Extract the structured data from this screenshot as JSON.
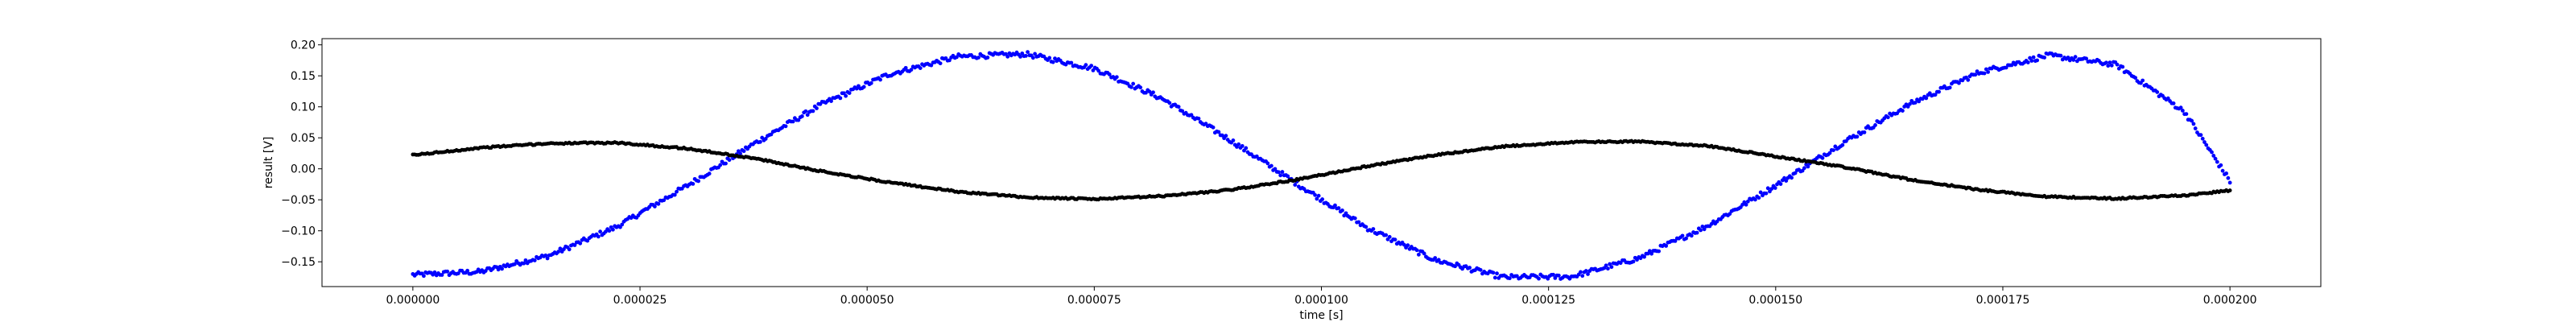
{
  "chart_data": {
    "type": "scatter",
    "title": "",
    "xlabel": "time [s]",
    "ylabel": "result [V]",
    "xlim": [
      -1e-05,
      0.00021
    ],
    "ylim": [
      -0.19,
      0.21
    ],
    "grid": false,
    "x_ticks": [
      0.0,
      2.5e-05,
      5e-05,
      7.5e-05,
      0.0001,
      0.000125,
      0.00015,
      0.000175,
      0.0002
    ],
    "x_tick_labels": [
      "0.000000",
      "0.000025",
      "0.000050",
      "0.000075",
      "0.000100",
      "0.000125",
      "0.000150",
      "0.000175",
      "0.000200"
    ],
    "y_ticks": [
      -0.15,
      -0.1,
      -0.05,
      0.0,
      0.05,
      0.1,
      0.15,
      0.2
    ],
    "y_tick_labels": [
      "−0.15",
      "−0.10",
      "−0.05",
      "0.00",
      "0.05",
      "0.10",
      "0.15",
      "0.20"
    ],
    "series": [
      {
        "color": "#0000ff",
        "marker": "dot",
        "x": [
          0.0,
          7.5e-06,
          1.5e-05,
          2.25e-05,
          3e-05,
          3.75e-05,
          4.5e-05,
          5.25e-05,
          6e-05,
          6.75e-05,
          7.5e-05,
          8.25e-05,
          9e-05,
          9.75e-05,
          0.000105,
          0.0001125,
          0.00012,
          0.0001275,
          0.000135,
          0.0001425,
          0.00015,
          0.0001575,
          0.000165,
          0.0001725,
          0.00018,
          0.0001875,
          0.000195,
          0.0002
        ],
        "y": [
          -0.171,
          -0.166,
          -0.14,
          -0.093,
          -0.029,
          0.04,
          0.104,
          0.153,
          0.181,
          0.185,
          0.162,
          0.113,
          0.046,
          -0.026,
          -0.095,
          -0.147,
          -0.175,
          -0.174,
          -0.144,
          -0.092,
          -0.027,
          0.043,
          0.106,
          0.156,
          0.183,
          0.168,
          0.092,
          -0.02
        ]
      },
      {
        "color": "#000000",
        "marker": "dot",
        "x": [
          0.0,
          7.5e-06,
          1.5e-05,
          2.25e-05,
          3e-05,
          3.75e-05,
          4.5e-05,
          5.25e-05,
          6e-05,
          6.75e-05,
          7.5e-05,
          8.25e-05,
          9e-05,
          9.75e-05,
          0.000105,
          0.0001125,
          0.00012,
          0.0001275,
          0.000135,
          0.0001425,
          0.00015,
          0.0001575,
          0.000165,
          0.0001725,
          0.00018,
          0.0001875,
          0.000195,
          0.0002
        ],
        "y": [
          0.022,
          0.034,
          0.041,
          0.042,
          0.033,
          0.017,
          -0.004,
          -0.022,
          -0.037,
          -0.046,
          -0.049,
          -0.044,
          -0.034,
          -0.017,
          0.004,
          0.022,
          0.036,
          0.043,
          0.044,
          0.037,
          0.02,
          0.003,
          -0.018,
          -0.034,
          -0.045,
          -0.048,
          -0.043,
          -0.035
        ]
      }
    ]
  }
}
